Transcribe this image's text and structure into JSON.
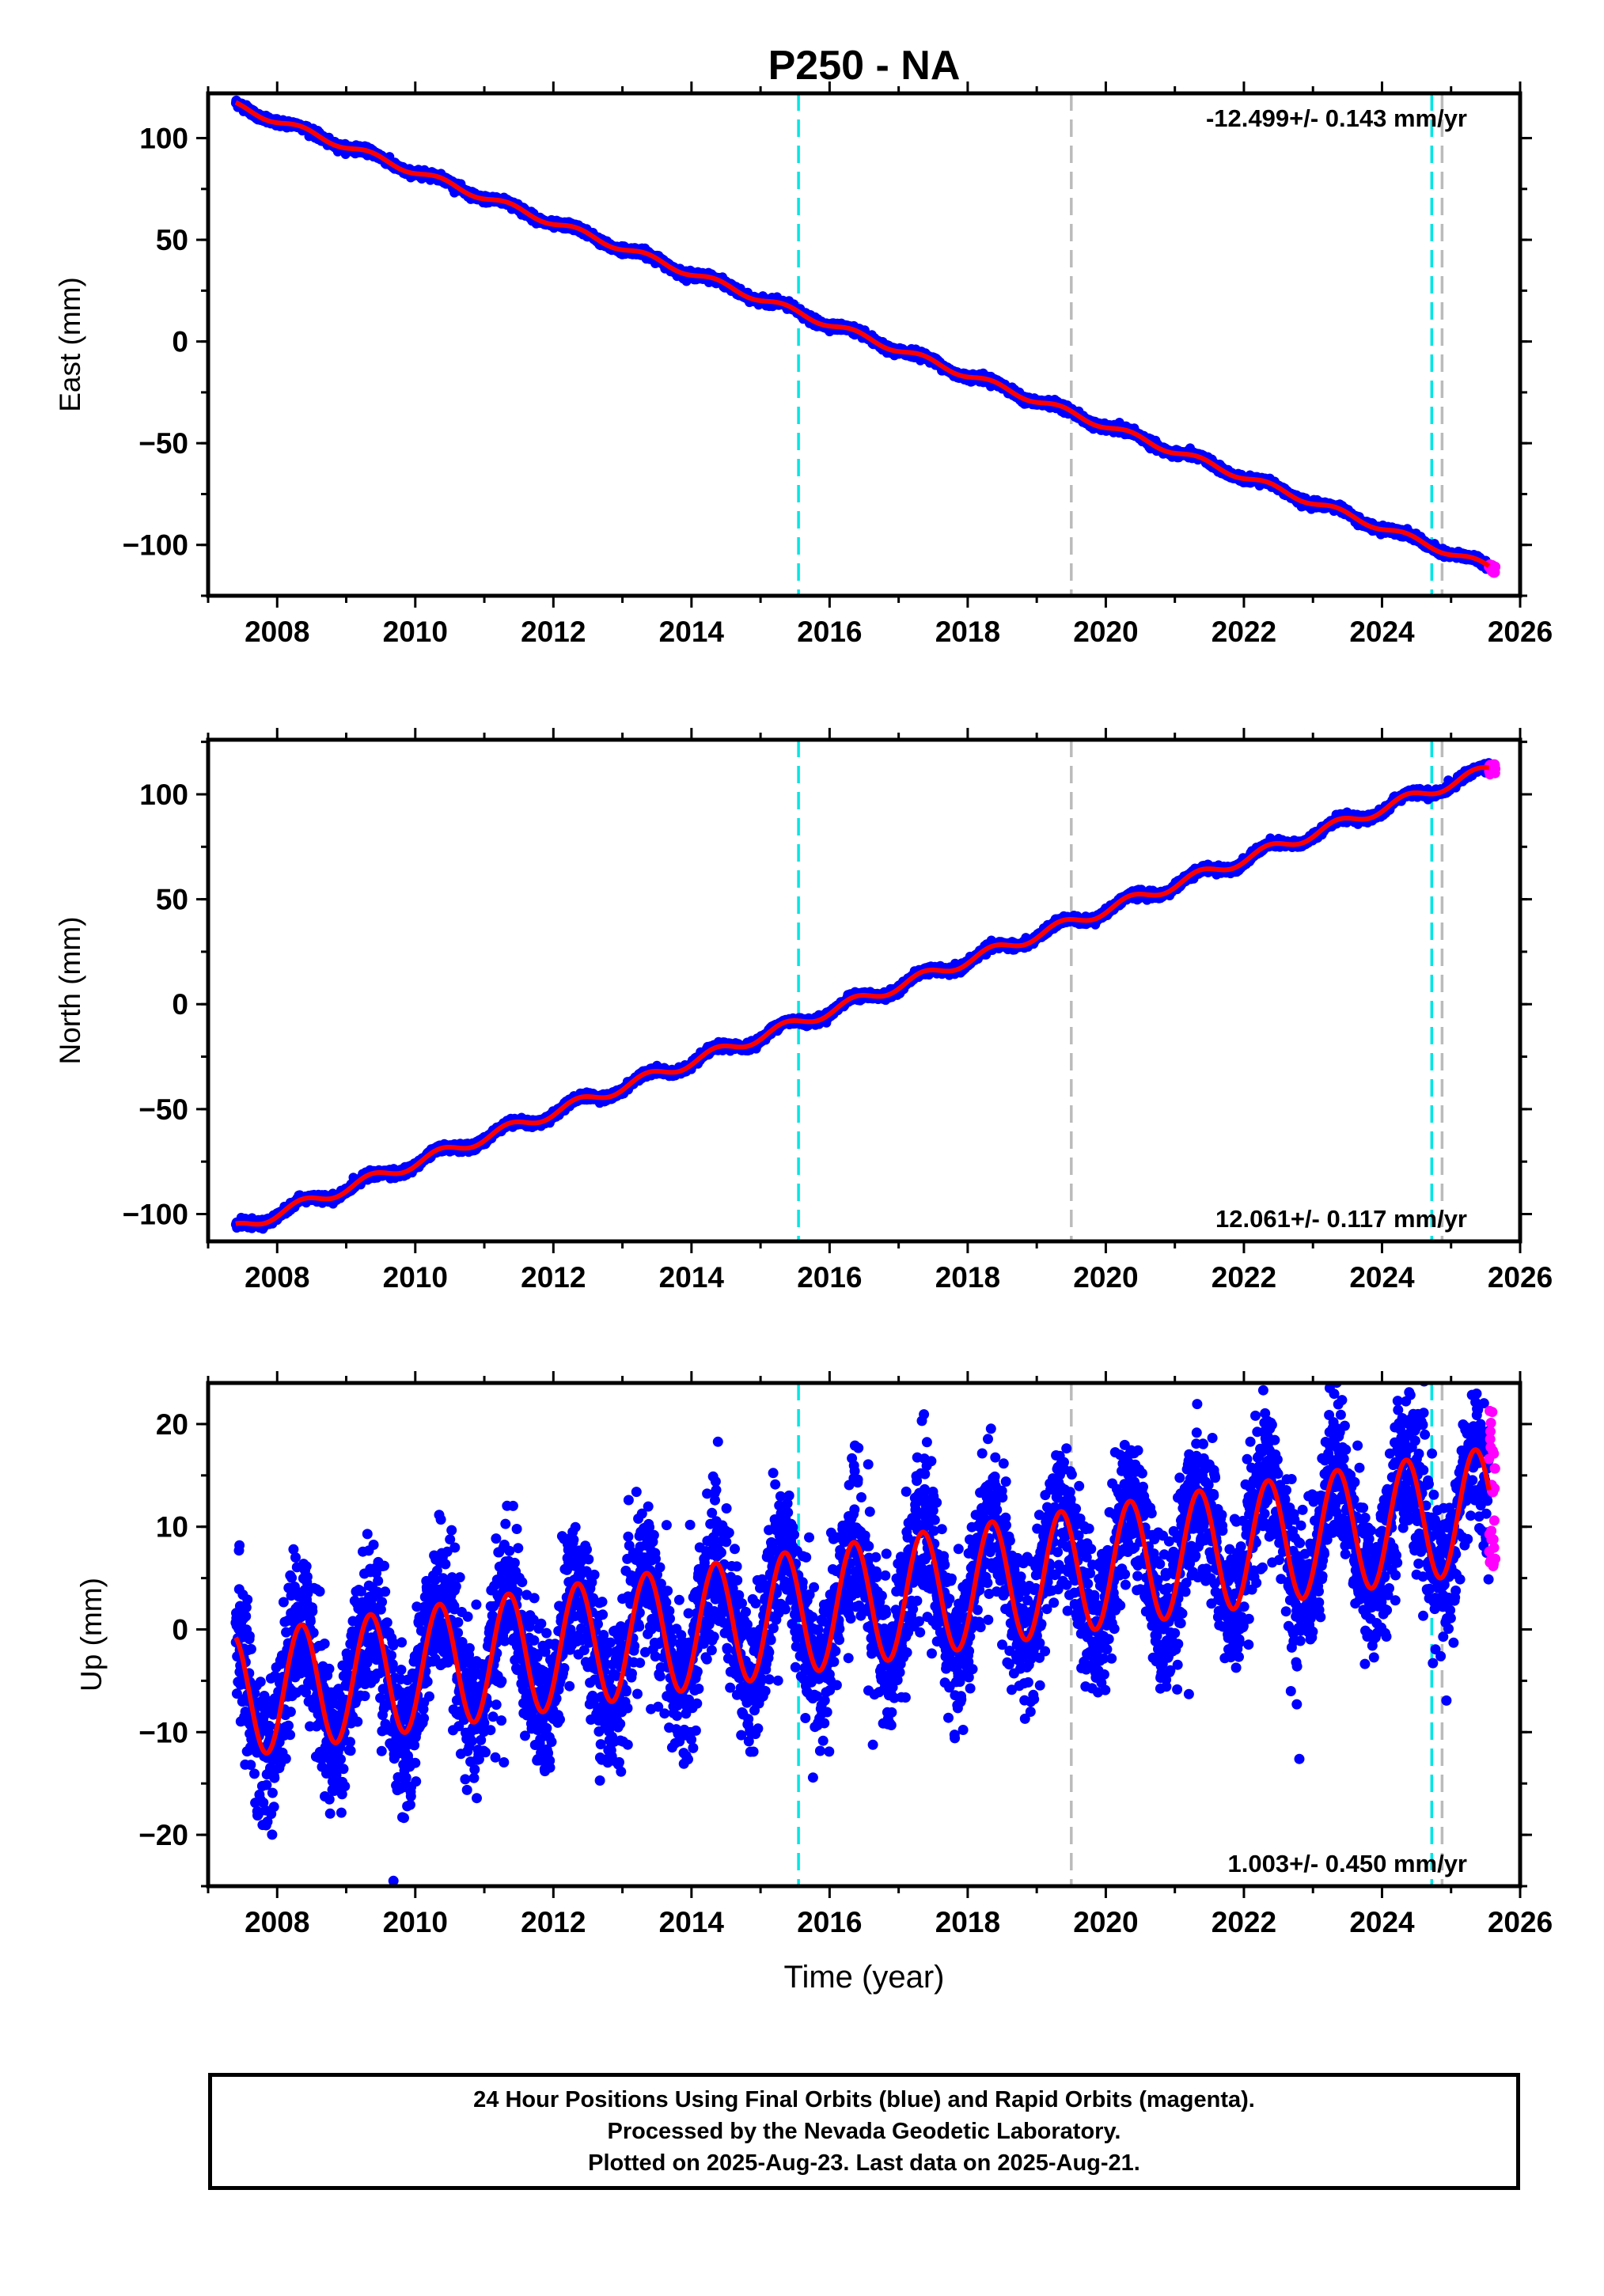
{
  "title": "P250 - NA",
  "colors": {
    "final_orbits": "#0000ff",
    "rapid_orbits": "#ff00ff",
    "model_fit": "#ff0000",
    "antenna_change": "#00e5e5",
    "event_gray": "#bbbbbb"
  },
  "xaxis": {
    "label": "Time (year)",
    "range": [
      2007.0,
      2026.0
    ],
    "ticks": [
      "2008",
      "2010",
      "2012",
      "2014",
      "2016",
      "2018",
      "2020",
      "2022",
      "2024",
      "2026"
    ]
  },
  "event_lines": [
    {
      "year": 2015.55,
      "color": "cyan"
    },
    {
      "year": 2019.5,
      "color": "gray"
    },
    {
      "year": 2024.72,
      "color": "cyan"
    },
    {
      "year": 2024.87,
      "color": "gray"
    }
  ],
  "chart_data": [
    {
      "type": "scatter",
      "ylabel": "East (mm)",
      "ylim": [
        -125,
        122
      ],
      "yticks": [
        "100",
        "50",
        "0",
        "−50",
        "−100"
      ],
      "ytick_values": [
        100,
        50,
        0,
        -50,
        -100
      ],
      "rate": "-12.499+/- 0.143 mm/yr",
      "rate_position": "top-right",
      "trend": {
        "start_year": 2007.4,
        "start_value": 116,
        "rate": -12.499
      },
      "seasonal_amplitude": 1.6,
      "series": [
        {
          "name": "Final Orbits",
          "x_range": [
            2007.4,
            2025.55
          ]
        },
        {
          "name": "Rapid Orbits",
          "x_range": [
            2025.55,
            2025.64
          ]
        }
      ]
    },
    {
      "type": "scatter",
      "ylabel": "North (mm)",
      "ylim": [
        -113,
        126
      ],
      "yticks": [
        "100",
        "50",
        "0",
        "−50",
        "−100"
      ],
      "ytick_values": [
        100,
        50,
        0,
        -50,
        -100
      ],
      "rate": "12.061+/- 0.117 mm/yr",
      "rate_position": "bottom-right",
      "trend": {
        "start_year": 2007.4,
        "start_value": -107,
        "rate": 12.061
      },
      "seasonal_amplitude": 2.5,
      "series": [
        {
          "name": "Final Orbits",
          "x_range": [
            2007.4,
            2025.55
          ]
        },
        {
          "name": "Rapid Orbits",
          "x_range": [
            2025.55,
            2025.64
          ]
        }
      ]
    },
    {
      "type": "scatter",
      "ylabel": "Up (mm)",
      "ylim": [
        -25,
        24
      ],
      "yticks": [
        "20",
        "10",
        "0",
        "−10",
        "−20"
      ],
      "ytick_values": [
        20,
        10,
        0,
        -10,
        -20
      ],
      "rate": "1.003+/- 0.450 mm/yr",
      "rate_position": "bottom-right",
      "trend": {
        "start_year": 2007.4,
        "start_value": -6.5,
        "rate": 1.003
      },
      "seasonal_amplitude": 6,
      "noise_sd": 3.6,
      "series": [
        {
          "name": "Final Orbits",
          "x_range": [
            2007.4,
            2025.55
          ]
        },
        {
          "name": "Rapid Orbits",
          "x_range": [
            2025.55,
            2025.64
          ],
          "y_range": [
            6,
            22
          ]
        }
      ]
    }
  ],
  "footer": {
    "line1": "24 Hour Positions Using Final Orbits (blue) and Rapid Orbits (magenta).",
    "line2": "Processed by the Nevada Geodetic Laboratory.",
    "line3": "Plotted on 2025-Aug-23. Last data on 2025-Aug-21."
  }
}
